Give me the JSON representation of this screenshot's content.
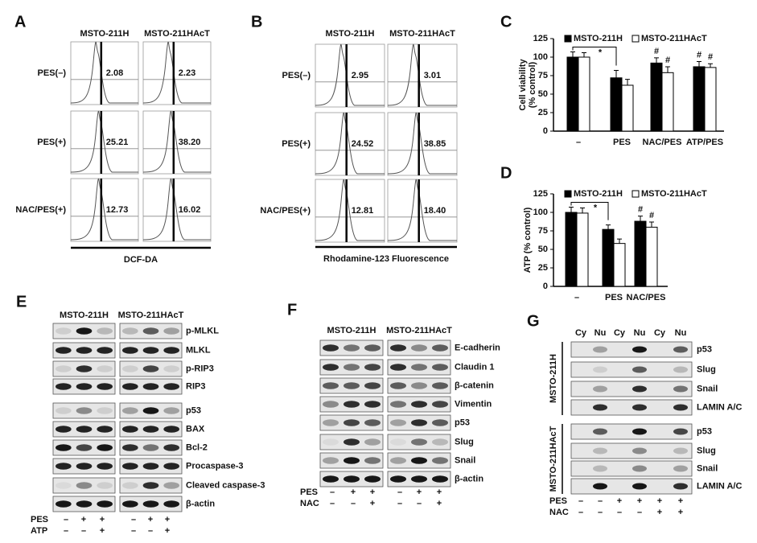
{
  "panel_a": {
    "letter": "A",
    "columns": [
      "MSTO-211H",
      "MSTO-211HAcT"
    ],
    "rows": [
      "PES(–)",
      "PES(+)",
      "NAC/PES(+)"
    ],
    "values": [
      [
        "2.08",
        "2.23"
      ],
      [
        "25.21",
        "38.20"
      ],
      [
        "12.73",
        "16.02"
      ]
    ],
    "xlabel": "DCF-DA"
  },
  "panel_b": {
    "letter": "B",
    "columns": [
      "MSTO-211H",
      "MSTO-211HAcT"
    ],
    "rows": [
      "PES(–)",
      "PES(+)",
      "NAC/PES(+)"
    ],
    "values": [
      [
        "2.95",
        "3.01"
      ],
      [
        "24.52",
        "38.85"
      ],
      [
        "12.81",
        "18.40"
      ]
    ],
    "xlabel": "Rhodamine-123 Fluorescence"
  },
  "chart_data": [
    {
      "type": "bar",
      "letter": "C",
      "categories": [
        "–",
        "PES",
        "NAC/PES",
        "ATP/PES"
      ],
      "series": [
        {
          "name": "MSTO-211H",
          "color": "#000000",
          "values": [
            100,
            72,
            92,
            87
          ],
          "errors": [
            7,
            10,
            7,
            7
          ],
          "marks": [
            null,
            null,
            "#",
            "#"
          ]
        },
        {
          "name": "MSTO-211HAcT",
          "color": "#ffffff",
          "values": [
            100,
            62,
            79,
            86
          ],
          "errors": [
            6,
            8,
            8,
            5
          ],
          "marks": [
            null,
            null,
            "#",
            "#"
          ]
        }
      ],
      "ylim": [
        0,
        125
      ],
      "yticks": [
        0,
        25,
        50,
        75,
        100,
        125
      ],
      "ylabel": [
        "Cell viability",
        "(% control)"
      ],
      "comparison_label": "*"
    },
    {
      "type": "bar",
      "letter": "D",
      "categories": [
        "–",
        "PES",
        "NAC/PES"
      ],
      "series": [
        {
          "name": "MSTO-211H",
          "color": "#000000",
          "values": [
            100,
            77,
            88
          ],
          "errors": [
            7,
            6,
            7
          ],
          "marks": [
            null,
            null,
            "#"
          ]
        },
        {
          "name": "MSTO-211HAcT",
          "color": "#ffffff",
          "values": [
            99,
            58,
            80
          ],
          "errors": [
            7,
            6,
            7
          ],
          "marks": [
            null,
            null,
            "#"
          ]
        }
      ],
      "ylim": [
        0,
        125
      ],
      "yticks": [
        0,
        25,
        50,
        75,
        100,
        125
      ],
      "ylabel": [
        "ATP (% control)"
      ],
      "comparison_label": "*"
    }
  ],
  "panel_e": {
    "letter": "E",
    "columns": [
      "MSTO-211H",
      "MSTO-211HAcT"
    ],
    "bands": [
      "p-MLKL",
      "MLKL",
      "p-RIP3",
      "RIP3",
      "p53",
      "BAX",
      "Bcl-2",
      "Procaspase-3",
      "Cleaved caspase-3",
      "β-actin"
    ],
    "treatments": [
      {
        "label": "PES",
        "values": [
          "–",
          "+",
          "+",
          "–",
          "+",
          "+"
        ]
      },
      {
        "label": "ATP",
        "values": [
          "–",
          "–",
          "+",
          "–",
          "–",
          "+"
        ]
      }
    ]
  },
  "panel_f": {
    "letter": "F",
    "columns": [
      "MSTO-211H",
      "MSTO-211HAcT"
    ],
    "bands": [
      "E-cadherin",
      "Claudin 1",
      "β-catenin",
      "Vimentin",
      "p53",
      "Slug",
      "Snail",
      "β-actin"
    ],
    "treatments": [
      {
        "label": "PES",
        "values": [
          "–",
          "+",
          "+",
          "–",
          "+",
          "+"
        ]
      },
      {
        "label": "NAC",
        "values": [
          "–",
          "–",
          "+",
          "–",
          "–",
          "+"
        ]
      }
    ]
  },
  "panel_g": {
    "letter": "G",
    "columns": [
      "Cy",
      "Nu",
      "Cy",
      "Nu",
      "Cy",
      "Nu"
    ],
    "groups": [
      {
        "name": "MSTO-211H",
        "bands": [
          "p53",
          "Slug",
          "Snail",
          "LAMIN A/C"
        ]
      },
      {
        "name": "MSTO-211HAcT",
        "bands": [
          "p53",
          "Slug",
          "Snail",
          "LAMIN A/C"
        ]
      }
    ],
    "treatments": [
      {
        "label": "PES",
        "values": [
          "–",
          "–",
          "+",
          "+",
          "+",
          "+"
        ]
      },
      {
        "label": "NAC",
        "values": [
          "–",
          "–",
          "–",
          "–",
          "+",
          "+"
        ]
      }
    ]
  }
}
